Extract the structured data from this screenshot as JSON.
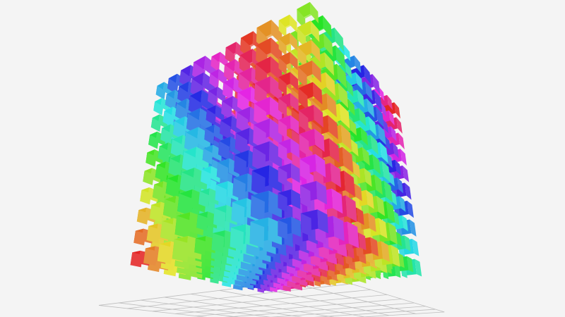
{
  "chart_data": {
    "type": "scatter3d",
    "symbol": "cube",
    "grid": true,
    "legend": "none",
    "color_mapping": "hue-cycle",
    "background": "#f4f4f4",
    "grid_color": "#bdbdbd"
  }
}
